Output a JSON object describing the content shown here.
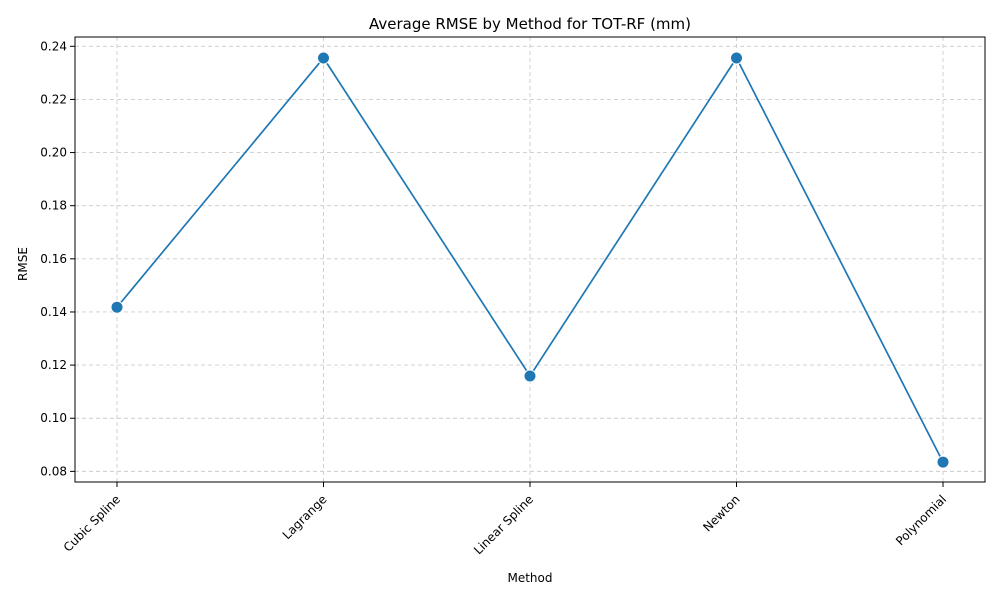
{
  "chart_data": {
    "type": "line",
    "title": "Average RMSE by Method for TOT-RF (mm)",
    "xlabel": "Method",
    "ylabel": "RMSE",
    "categories": [
      "Cubic Spline",
      "Lagrange",
      "Linear Spline",
      "Newton",
      "Polynomial"
    ],
    "series": [
      {
        "values": [
          0.1418,
          0.2356,
          0.1159,
          0.2356,
          0.0835
        ]
      }
    ],
    "yticks": [
      "0.08",
      "0.10",
      "0.12",
      "0.14",
      "0.16",
      "0.18",
      "0.20",
      "0.22",
      "0.24"
    ],
    "ylim": [
      0.076,
      0.2435
    ],
    "grid": true,
    "line_color": "#1f77b4",
    "marker_color": "#1f77b4"
  }
}
